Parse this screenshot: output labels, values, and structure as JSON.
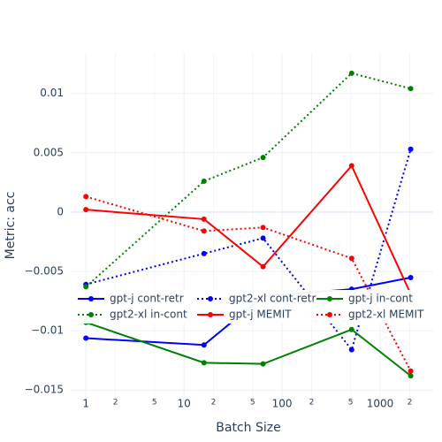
{
  "chart_data": {
    "type": "line",
    "xlabel": "Batch Size",
    "ylabel": "Metric: acc",
    "x": [
      1,
      16,
      64,
      512,
      2048
    ],
    "xscale": "log",
    "xlim": [
      0.7,
      3470
    ],
    "xticks": [
      1,
      {
        "value": 2,
        "label": "2"
      },
      {
        "value": 5,
        "label": "5"
      },
      10,
      {
        "value": 20,
        "label": "2"
      },
      {
        "value": 50,
        "label": "5"
      },
      100,
      {
        "value": 200,
        "label": "2"
      },
      {
        "value": 500,
        "label": "5"
      },
      1000,
      {
        "value": 2000,
        "label": "2"
      }
    ],
    "ylim": [
      -0.0164,
      0.0134
    ],
    "yticks": [
      {
        "value": -0.015,
        "label": "−0.015"
      },
      {
        "value": -0.01,
        "label": "−0.01"
      },
      {
        "value": -0.005,
        "label": "−0.005"
      },
      0,
      0.005,
      0.01
    ],
    "grid": true,
    "legend": "bottom",
    "series": [
      {
        "name": "gpt-j cont-retr",
        "color": "#0000ff",
        "dash": "solid",
        "values": [
          -0.01063,
          -0.0112,
          -0.0071,
          -0.0065,
          -0.00552
        ]
      },
      {
        "name": "gpt2-xl cont-retr",
        "color": "#0000ff",
        "dash": "dot",
        "values": [
          -0.0061,
          -0.0035,
          -0.0022,
          -0.0116,
          0.0053
        ]
      },
      {
        "name": "gpt-j in-cont",
        "color": "#008000",
        "dash": "solid",
        "values": [
          -0.0093,
          -0.0127,
          -0.0128,
          -0.0099,
          -0.0138
        ]
      },
      {
        "name": "gpt2-xl in-cont",
        "color": "#008000",
        "dash": "dot",
        "values": [
          -0.0063,
          0.0026,
          0.0046,
          0.0117,
          0.0104
        ]
      },
      {
        "name": "gpt-j MEMIT",
        "color": "#ff0000",
        "dash": "solid",
        "values": [
          0.0002,
          -0.0006,
          -0.0046,
          0.0039,
          -0.0069
        ]
      },
      {
        "name": "gpt2-xl MEMIT",
        "color": "#ff0000",
        "dash": "dot",
        "values": [
          0.0013,
          -0.0016,
          -0.0013,
          -0.0039,
          -0.0134
        ]
      }
    ]
  }
}
